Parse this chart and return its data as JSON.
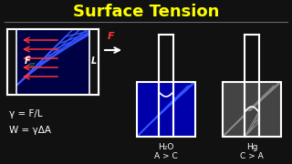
{
  "title": "Surface Tension",
  "title_color": "#FFFF00",
  "bg_color": "#111111",
  "white": "#ffffff",
  "blue_dark": "#0000aa",
  "blue_line": "#3355ff",
  "red": "#ff3333",
  "green": "#00cc44",
  "gray_dark": "#444444",
  "gray_line": "#888888",
  "divider_color": "#666666",
  "formula1": "γ = F/L",
  "formula2": "W = γΔA"
}
